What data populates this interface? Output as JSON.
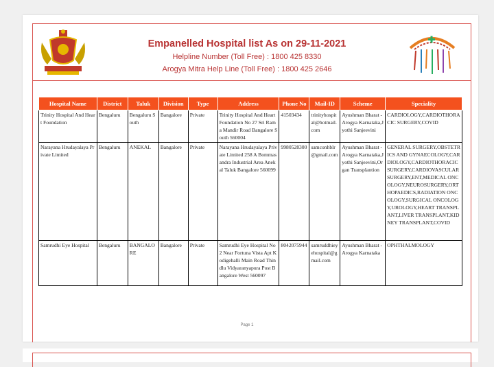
{
  "header": {
    "title": "Empanelled Hospital list As on 29-11-2021",
    "helpline": "Helpline Number (Toll Free) : 1800 425 8330",
    "arogya": "Arogya Mitra Help Line (Toll Free) : 1800 425 2646"
  },
  "table": {
    "columns": [
      "Hospital Name",
      "District",
      "Taluk",
      "Division",
      "Type",
      "Address",
      "Phone No",
      "Mail-ID",
      "Scheme",
      "Speciality"
    ],
    "rows": [
      [
        "Trinity Hospital And Heart Foundation",
        "Bengaluru",
        "Bengaluru South",
        "Bangalore",
        "Private",
        "Trinity Hospital And Heart Foundation No 27 Sri Rama Mandir Road Bangalore South 560004",
        "41503434",
        "trinityhospital@hotmail.com",
        "Ayushman Bharat - Arogya Karnataka,Jyothi Sanjeevini",
        "CARDIOLOGY,CARDIOTHORACIC SURGERY,COVID"
      ],
      [
        "Narayana Hrudayalaya Private Limited",
        "Bengaluru",
        "ANEKAL",
        "Bangalore",
        "Private",
        "Narayana Hrudayalaya Private Limited  258 A Bommasandra Industrial Area Anekal Taluk Bangalore  560099",
        "9980528300",
        "samconhblr@gmail.com",
        "Ayushman Bharat - Arogya Karnataka,Jyothi Sanjeevini,Organ Transplantion",
        "GENERAL SURGERY,OBSTETRICS AND GYNAECOLOGY,CARDIOLOGY,CARDIOTHORACIC SURGERY,CARDIOVASCULAR SURGERY,ENT,MEDICAL ONCOLOGY,NEUROSURGERY,ORTHOPAEDICS,RADIATION ONCOLOGY,SURGICAL ONCOLOGY,UROLOGY,HEART TRANSPLANT,LIVER TRANSPLANT,KIDNEY TRANSPLANT,COVID"
      ],
      [
        "Samrudhi Eye Hospital",
        "Bengaluru",
        "BANGALORE",
        "Bangalore",
        "Private",
        "Samrudhi Eye Hospital No 2 Near Fortuna Vista Apt Kodigehalli Main Road Thindlu Vidyaranyapura Post Bangalore West 560097",
        "8042075944",
        "samruddhieyehospital@gmail.com",
        "Ayushman Bharat - Arogya Karnataka",
        "OPHTHALMOLOGY"
      ]
    ]
  },
  "footer": {
    "page": "Page 1"
  },
  "colors": {
    "accent": "#f4511e",
    "border": "#d9534f",
    "title": "#b83232"
  }
}
